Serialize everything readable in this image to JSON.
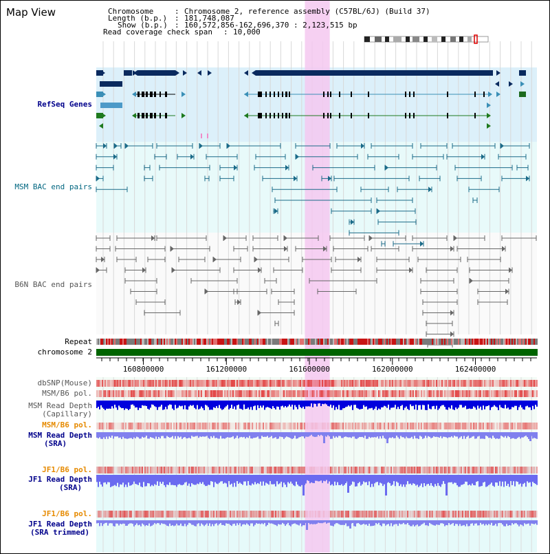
{
  "header": {
    "view_title": "Map View",
    "chromosome_key": "Chromosome",
    "chromosome_value": "Chromosome 2, reference assembly (C57BL/6J) (Build 37)",
    "length_key": "Length (b.p.)",
    "length_value": "181,748,087",
    "show_key": "Show (b.p.)",
    "show_value": "160,572,856-162,696,370 : 2,123,515 bp",
    "coverage_key": "Read coverage check span",
    "coverage_value": "10,000"
  },
  "tracks": {
    "refseq": "RefSeq Genes",
    "msm_bac": "MSM BAC end pairs",
    "b6n_bac": "B6N BAC end pairs",
    "repeat": "Repeat",
    "chromosome": "chromosome 2",
    "dbsnp": "dbSNP(Mouse)",
    "msm_pol_1": "MSM/B6 pol.",
    "msm_depth_cap_1": "MSM Read Depth",
    "msm_depth_cap_2": "(Capillary)",
    "msm_pol_2": "MSM/B6 pol.",
    "msm_depth_sra_1": "MSM Read Depth",
    "msm_depth_sra_2": "(SRA)",
    "jf1_pol_1": "JF1/B6 pol.",
    "jf1_depth_sra_1": "JF1 Read Depth",
    "jf1_depth_sra_2": "(SRA)",
    "jf1_pol_2": "JF1/B6 pol.",
    "jf1_depth_trim_1": "JF1 Read Depth",
    "jf1_depth_trim_2": "(SRA trimmed)"
  },
  "axis": {
    "ticks": [
      "160800000",
      "161200000",
      "161600000",
      "162000000",
      "162400000"
    ],
    "tick_values": [
      160800000,
      161200000,
      161600000,
      162000000,
      162400000
    ],
    "range": [
      160572856,
      162696370
    ]
  },
  "highlight": {
    "start": 161578000,
    "end": 161698000
  },
  "colors": {
    "label_blue": "#00008b",
    "label_teal": "#006680",
    "label_gray": "#555555",
    "label_orange": "#e68a00",
    "refseq_bg": "#dcf0fa",
    "msm_bg": "#e8fafa",
    "b6n_bg": "#fafafa",
    "chrom_green": "#006400",
    "highlight": "#f5c8f0",
    "depth_blue": "#0000dd",
    "sra_blue": "#8080ee",
    "pol_red": "#e03030"
  }
}
